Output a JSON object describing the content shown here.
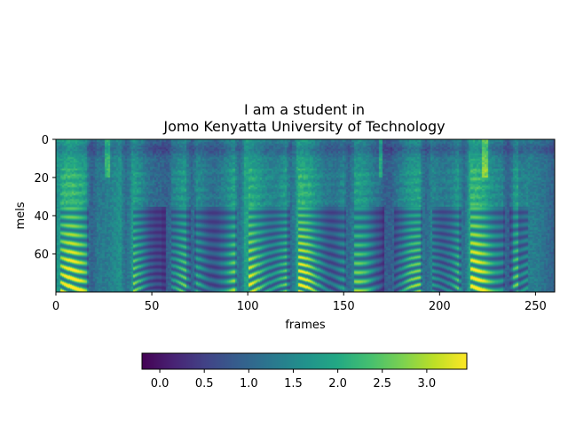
{
  "chart_data": {
    "type": "heatmap",
    "title_lines": [
      "I am a student in",
      "Jomo Kenyatta University of Technology"
    ],
    "xlabel": "frames",
    "ylabel": "mels",
    "x_range": [
      0,
      260
    ],
    "y_range": [
      0,
      80
    ],
    "y_inverted": true,
    "x_ticks": [
      "0",
      "50",
      "100",
      "150",
      "200",
      "250"
    ],
    "y_ticks": [
      "0",
      "20",
      "40",
      "60"
    ],
    "colormap": "viridis",
    "colorbar": {
      "orientation": "horizontal",
      "placement": "bottom",
      "range": [
        -0.2,
        3.45
      ],
      "ticks": [
        "0.0",
        "0.5",
        "1.0",
        "1.5",
        "2.0",
        "2.5",
        "3.0"
      ]
    },
    "grid": false,
    "legend": "none"
  }
}
